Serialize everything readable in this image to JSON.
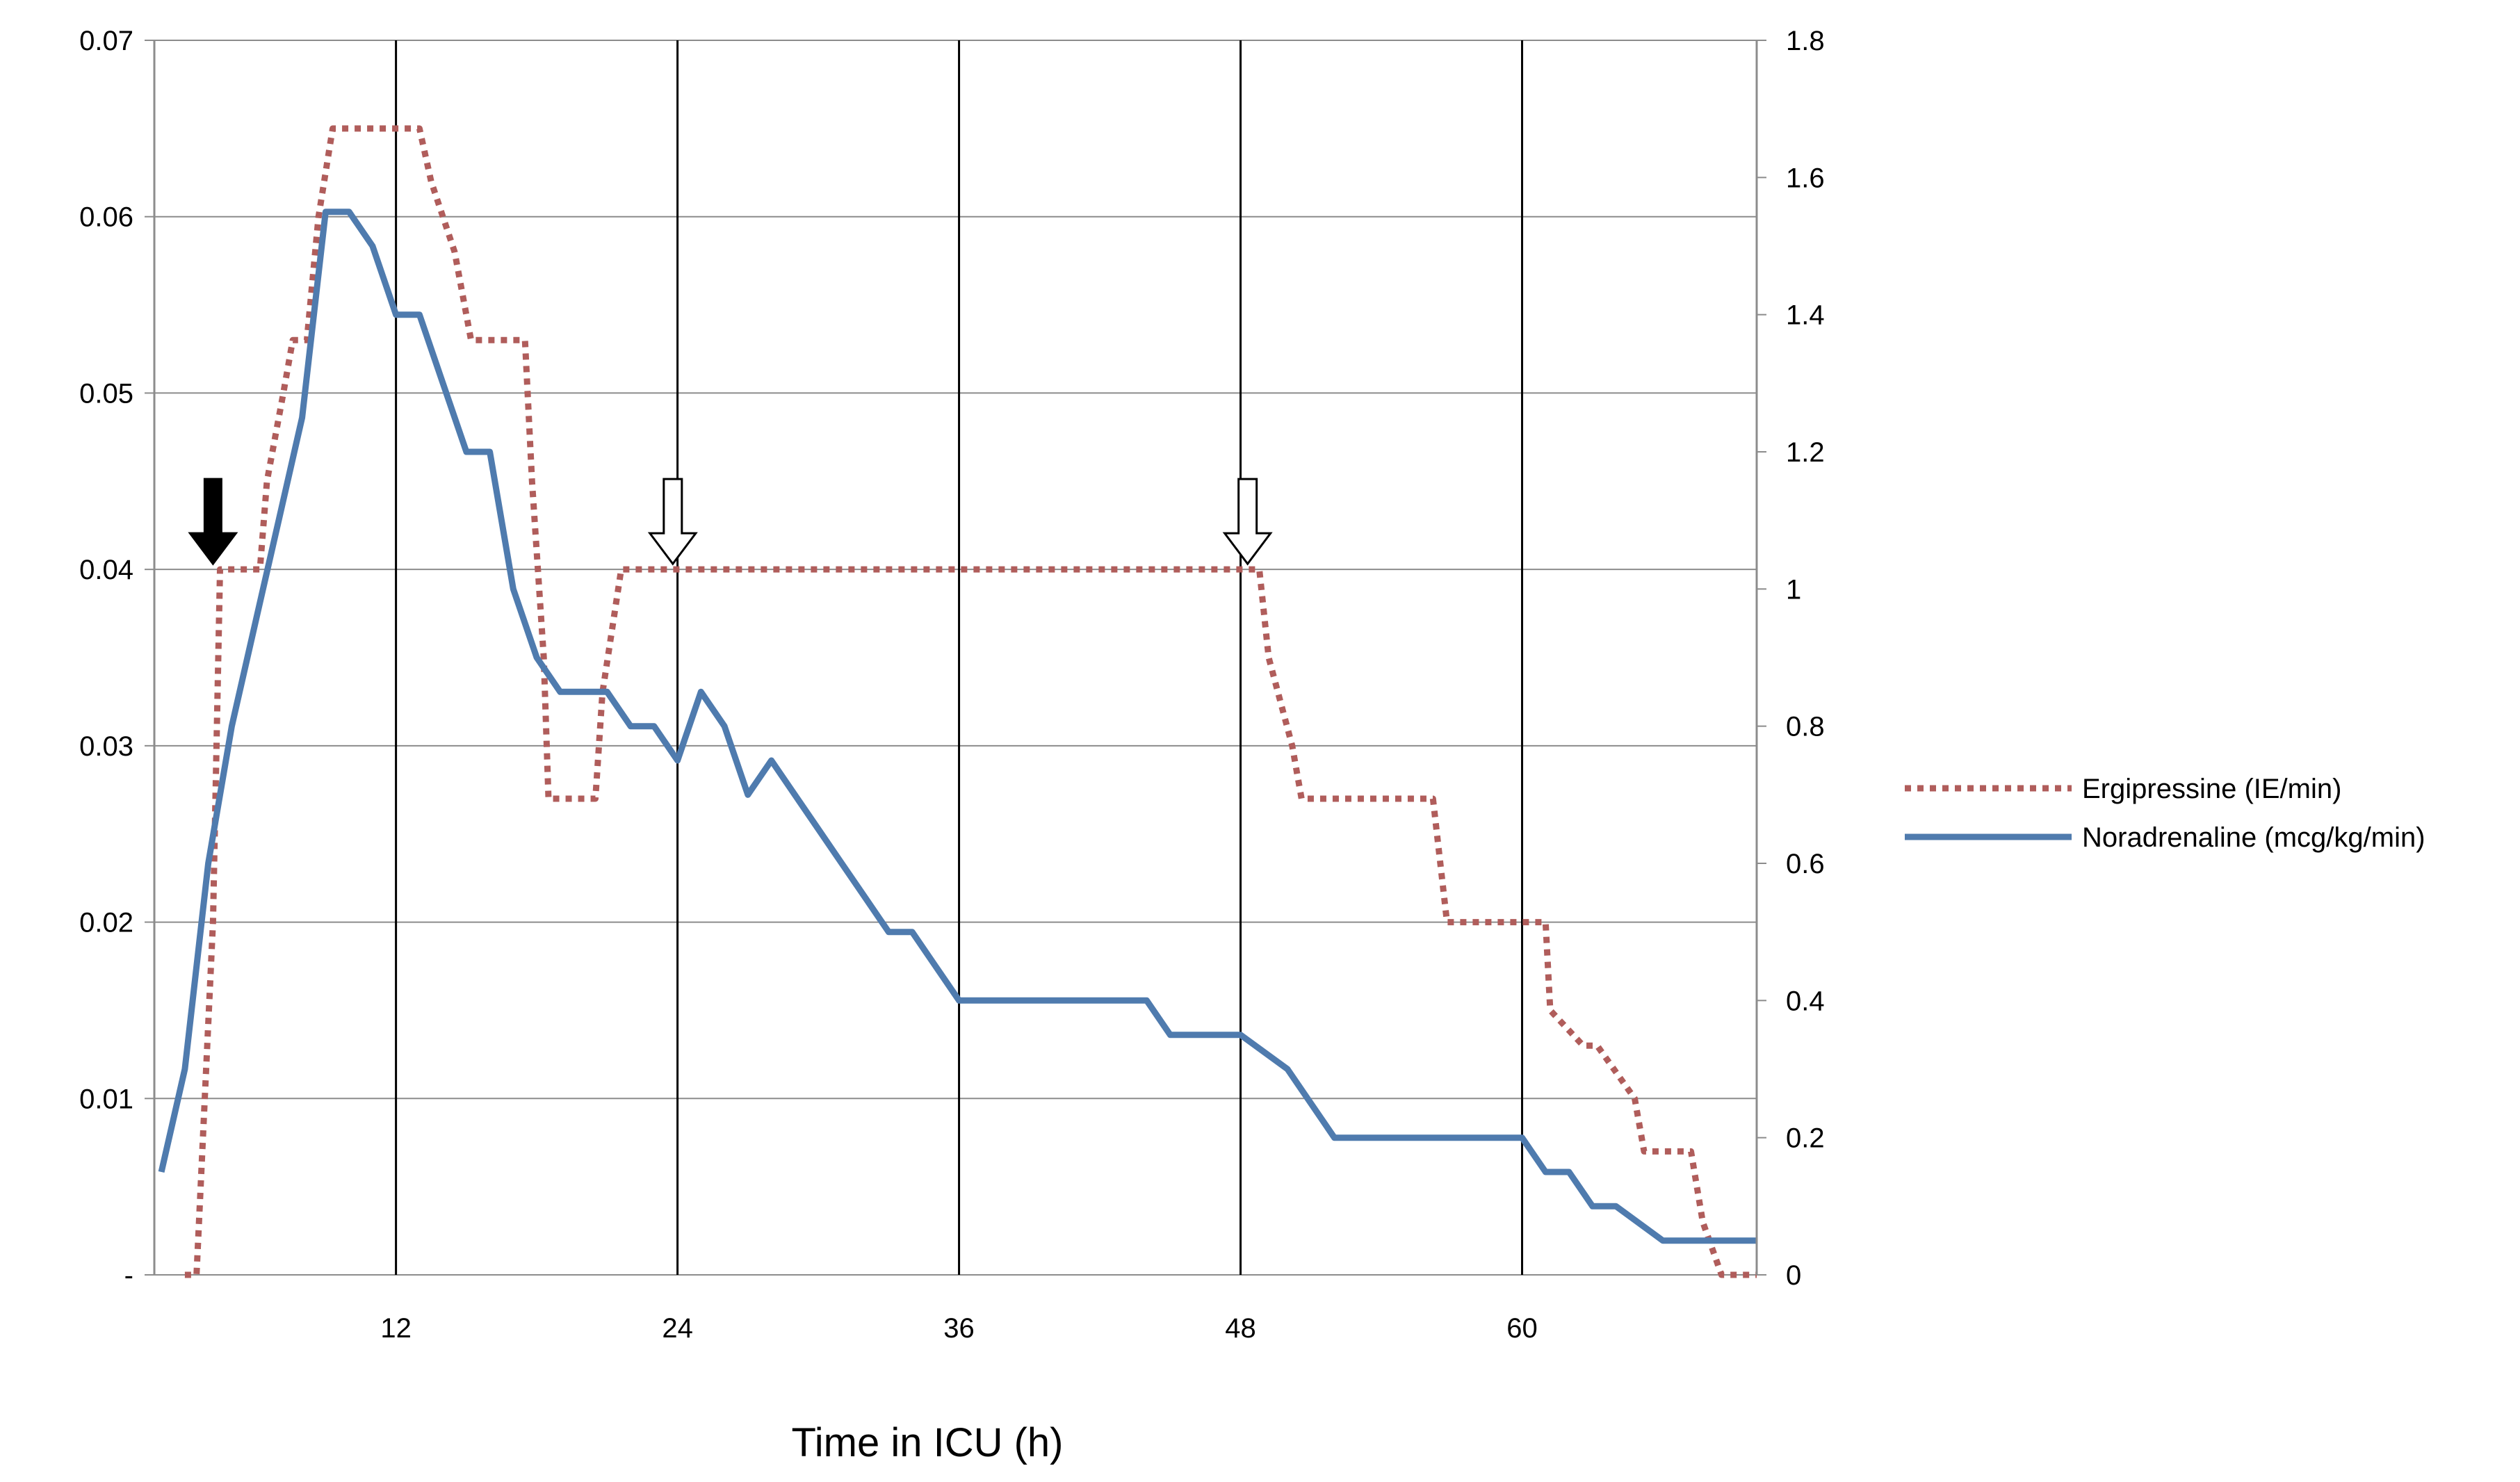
{
  "chart_data": {
    "type": "line",
    "xlabel": "Time in ICU (h)",
    "x_ticks": [
      12,
      24,
      36,
      48,
      60
    ],
    "xlim": [
      1.7,
      70
    ],
    "y_left": {
      "ylim": [
        0,
        0.07
      ],
      "tick_values": [
        0,
        0.01,
        0.02,
        0.03,
        0.04,
        0.05,
        0.06,
        0.07
      ],
      "tick_labels": [
        "-",
        "0.01",
        "0.02",
        "0.03",
        "0.04",
        "0.05",
        "0.06",
        "0.07"
      ]
    },
    "y_right": {
      "ylim": [
        0,
        1.8
      ],
      "tick_values": [
        0,
        0.2,
        0.4,
        0.6,
        0.8,
        1,
        1.2,
        1.4,
        1.6,
        1.8
      ],
      "tick_labels": [
        "0",
        "0.2",
        "0.4",
        "0.6",
        "0.8",
        "1",
        "1.2",
        "1.4",
        "1.6",
        "1.8"
      ]
    },
    "grid": "horizontal gridlines at left-axis ticks; vertical lines at x ticks",
    "legend_position": "right",
    "series": [
      {
        "name": "Ergipressine (IE/min)",
        "axis": "left",
        "style": "dotted",
        "color": "#b05d5b",
        "x": [
          3,
          3.5,
          4.2,
          4.5,
          6.2,
          6.5,
          7.2,
          7.6,
          8.2,
          8.7,
          9.3,
          10.2,
          13,
          13.5,
          14.5,
          15.2,
          17.5,
          17.8,
          18.3,
          18.5,
          20.5,
          20.8,
          21.6,
          48.8,
          49.2,
          50.2,
          50.6,
          56.2,
          56.8,
          59.5,
          61,
          61.2,
          62.6,
          63.2,
          64.8,
          65.2,
          67.2,
          67.7,
          68.5,
          70
        ],
        "y": [
          0,
          0,
          0.02,
          0.04,
          0.04,
          0.045,
          0.05,
          0.053,
          0.053,
          0.06,
          0.065,
          0.065,
          0.065,
          0.062,
          0.058,
          0.053,
          0.053,
          0.045,
          0.035,
          0.027,
          0.027,
          0.033,
          0.04,
          0.04,
          0.035,
          0.03,
          0.027,
          0.027,
          0.02,
          0.02,
          0.02,
          0.015,
          0.013,
          0.013,
          0.01,
          0.007,
          0.007,
          0.003,
          0,
          0
        ]
      },
      {
        "name": "Noradrenaline (mcg/kg/min)",
        "axis": "right",
        "style": "solid",
        "color": "#4f7bae",
        "x": [
          2,
          3,
          4,
          5,
          6,
          7,
          8,
          9,
          10,
          11,
          12,
          13,
          14,
          15,
          16,
          17,
          18,
          19,
          20,
          21,
          22,
          23,
          24,
          25,
          26,
          27,
          28,
          29,
          30,
          31,
          32,
          33,
          34,
          35,
          36,
          38,
          40,
          42,
          44,
          45,
          46,
          48,
          50,
          52,
          54,
          56,
          58,
          59,
          60,
          61,
          62,
          63,
          64,
          66,
          68,
          70
        ],
        "y": [
          0.15,
          0.3,
          0.6,
          0.8,
          0.95,
          1.1,
          1.25,
          1.55,
          1.55,
          1.5,
          1.4,
          1.4,
          1.3,
          1.2,
          1.2,
          1.0,
          0.9,
          0.85,
          0.85,
          0.85,
          0.8,
          0.8,
          0.75,
          0.85,
          0.8,
          0.7,
          0.75,
          0.7,
          0.65,
          0.6,
          0.55,
          0.5,
          0.5,
          0.45,
          0.4,
          0.4,
          0.4,
          0.4,
          0.4,
          0.35,
          0.35,
          0.35,
          0.3,
          0.2,
          0.2,
          0.2,
          0.2,
          0.2,
          0.2,
          0.15,
          0.15,
          0.1,
          0.1,
          0.05,
          0.05,
          0.05
        ]
      }
    ],
    "annotations": [
      {
        "type": "arrow-down",
        "style": "filled",
        "x": 4.2,
        "axis": "left",
        "y": 0.04
      },
      {
        "type": "arrow-down",
        "style": "outline",
        "x": 23.8,
        "axis": "left",
        "y": 0.04
      },
      {
        "type": "arrow-down",
        "style": "outline",
        "x": 48.3,
        "axis": "left",
        "y": 0.04
      }
    ]
  }
}
